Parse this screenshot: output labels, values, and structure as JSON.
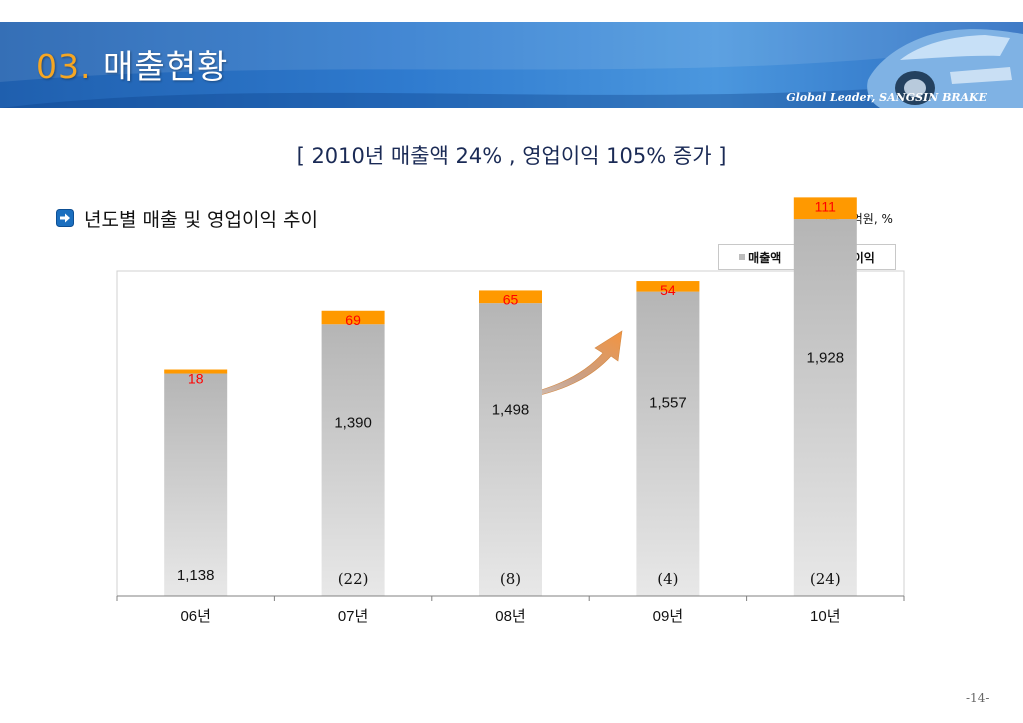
{
  "header": {
    "section_number": "03.",
    "section_title": " 매출현황",
    "tagline": "Global Leader, SANGSIN BRAKE"
  },
  "subtitle": "[ 2010년 매출액 24% , 영업이익 105% 증가 ]",
  "section": {
    "icon": "arrow-right-icon",
    "label": "년도별 매출 및 영업이익 추이"
  },
  "unit_label": "단위 : 억원, %",
  "page_number": "-14-",
  "colors": {
    "banner": "#2f7bcf",
    "sales": "#bdbdbd",
    "profit": "#ff9900",
    "profit_label": "#ff0000",
    "trend_arrow": "#f39440"
  },
  "chart_data": {
    "type": "bar",
    "stacked": true,
    "categories": [
      "06년",
      "07년",
      "08년",
      "09년",
      "10년"
    ],
    "series": [
      {
        "name": "매출액",
        "values": [
          1138,
          1390,
          1498,
          1557,
          1928
        ],
        "labels": [
          "1,138",
          "1,390",
          "1,498",
          "1,557",
          "1,928"
        ]
      },
      {
        "name": "영업이익",
        "values": [
          18,
          69,
          65,
          54,
          111
        ],
        "labels": [
          "18",
          "69",
          "65",
          "54",
          "111"
        ]
      }
    ],
    "growth_labels": [
      "",
      "(22)",
      "(8)",
      "(4)",
      "(24)"
    ],
    "legend_position": "top-right",
    "grid": false
  }
}
